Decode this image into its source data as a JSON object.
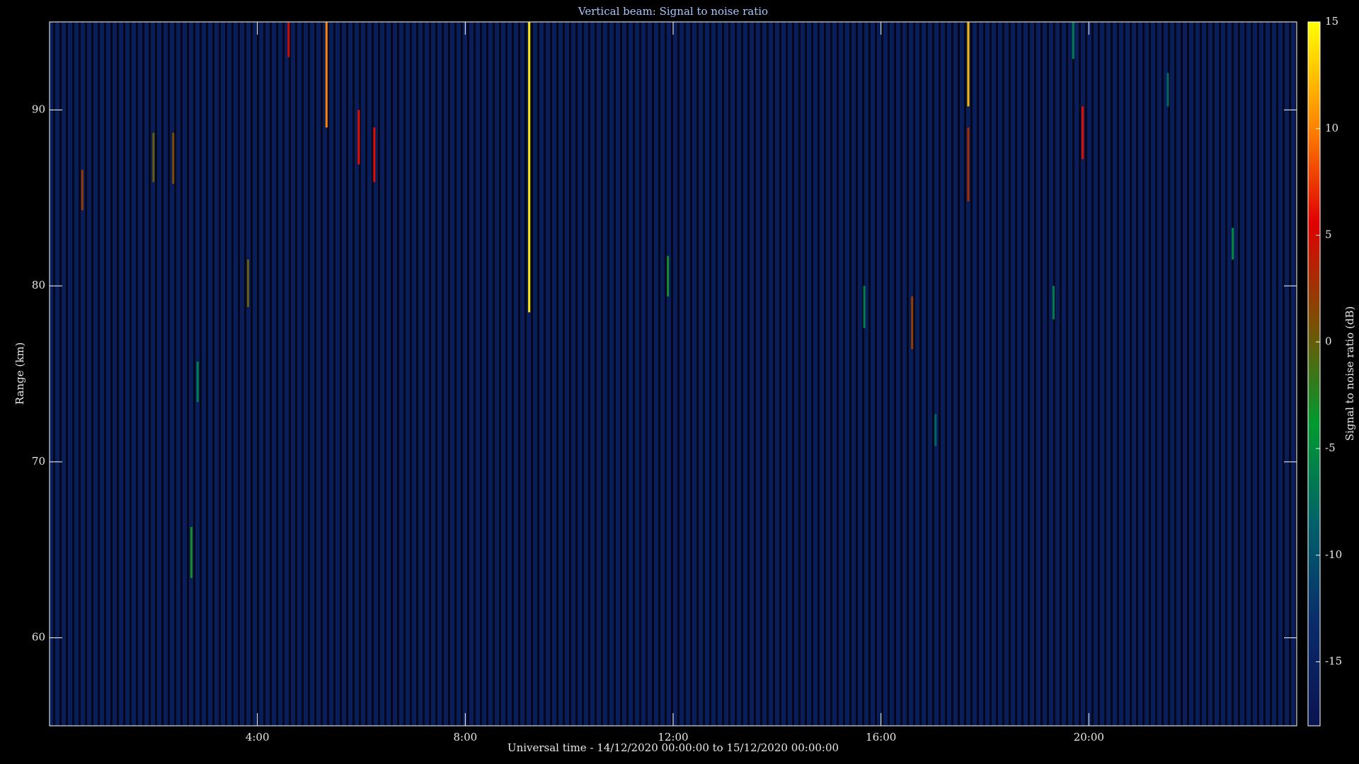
{
  "chart_data": {
    "type": "heatmap",
    "title": "Vertical beam: Signal to noise ratio",
    "xlabel": "Universal time - 14/12/2020 00:00:00 to 15/12/2020 00:00:00",
    "ylabel": "Range (km)",
    "colorbar_label": "Signal to noise ratio (dB)",
    "xlim": [
      0,
      24
    ],
    "xticks": [
      {
        "value": 4,
        "label": "4:00"
      },
      {
        "value": 8,
        "label": "8:00"
      },
      {
        "value": 12,
        "label": "12:00"
      },
      {
        "value": 16,
        "label": "16:00"
      },
      {
        "value": 20,
        "label": "20:00"
      }
    ],
    "ylim": [
      55,
      95
    ],
    "yticks": [
      60,
      70,
      80,
      90
    ],
    "clim": [
      -18,
      15
    ],
    "cticks": [
      -15,
      -10,
      -5,
      0,
      5,
      10,
      15
    ],
    "colormap": [
      "#0a1450",
      "#0a2a6a",
      "#00606a",
      "#009a30",
      "#7a5000",
      "#e00000",
      "#ff8a00",
      "#ffff00"
    ],
    "background_snr": -16,
    "events": [
      {
        "time": 0.63,
        "range": [
          84.3,
          86.6
        ],
        "snr": 2
      },
      {
        "time": 2.0,
        "range": [
          85.9,
          88.7
        ],
        "snr": 0
      },
      {
        "time": 2.38,
        "range": [
          85.8,
          88.7
        ],
        "snr": 1
      },
      {
        "time": 2.73,
        "range": [
          63.4,
          66.3
        ],
        "snr": -3
      },
      {
        "time": 2.85,
        "range": [
          73.4,
          75.7
        ],
        "snr": -6
      },
      {
        "time": 3.82,
        "range": [
          78.8,
          81.5
        ],
        "snr": 0
      },
      {
        "time": 4.6,
        "range": [
          93,
          95
        ],
        "snr": 5
      },
      {
        "time": 5.33,
        "range": [
          89,
          95
        ],
        "snr": 10
      },
      {
        "time": 5.95,
        "range": [
          86.9,
          90
        ],
        "snr": 6
      },
      {
        "time": 6.25,
        "range": [
          85.9,
          89
        ],
        "snr": 6
      },
      {
        "time": 9.23,
        "range": [
          78.5,
          95
        ],
        "snr": 14
      },
      {
        "time": 11.9,
        "range": [
          79.4,
          81.7
        ],
        "snr": -3
      },
      {
        "time": 15.68,
        "range": [
          77.6,
          80
        ],
        "snr": -6
      },
      {
        "time": 16.6,
        "range": [
          76.4,
          79.4
        ],
        "snr": 2
      },
      {
        "time": 17.05,
        "range": [
          70.9,
          72.7
        ],
        "snr": -8
      },
      {
        "time": 17.68,
        "range": [
          90.2,
          95
        ],
        "snr": 12
      },
      {
        "time": 17.68,
        "range": [
          84.8,
          89
        ],
        "snr": 3
      },
      {
        "time": 19.32,
        "range": [
          78.1,
          80
        ],
        "snr": -6
      },
      {
        "time": 19.7,
        "range": [
          92.9,
          95
        ],
        "snr": -6
      },
      {
        "time": 19.88,
        "range": [
          87.2,
          90.2
        ],
        "snr": 6
      },
      {
        "time": 21.52,
        "range": [
          90.2,
          92.1
        ],
        "snr": -8
      },
      {
        "time": 22.77,
        "range": [
          81.5,
          83.3
        ],
        "snr": -5
      }
    ]
  }
}
